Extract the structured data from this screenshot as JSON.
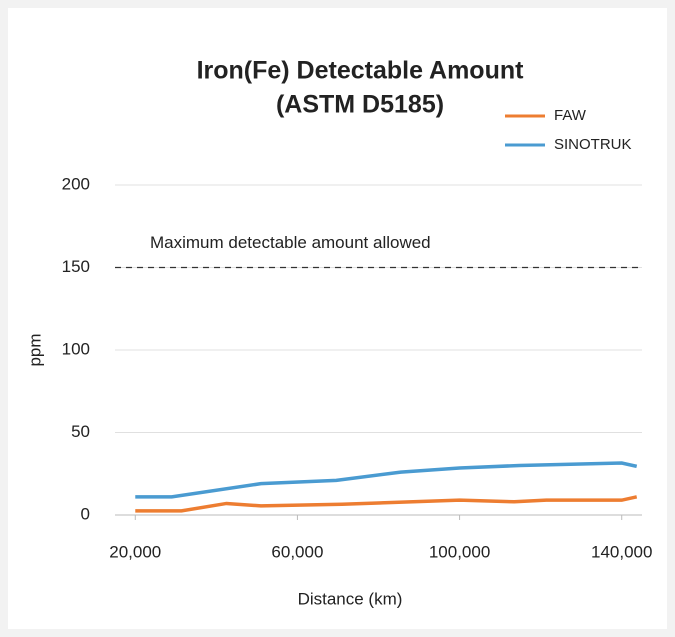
{
  "chart_data": {
    "type": "line",
    "title": [
      "Iron(Fe) Detectable Amount",
      "(ASTM D5185)"
    ],
    "x_label": "Distance (km)",
    "y_label": "ppm",
    "series": [
      {
        "name": "FAW",
        "color": "#ed7d31",
        "x": [
          20000,
          31400,
          42500,
          51000,
          71000,
          100000,
          113500,
          121400,
          140000,
          143700
        ],
        "values": [
          2.5,
          2.5,
          7,
          5.5,
          6.5,
          9,
          8,
          9,
          9,
          11
        ]
      },
      {
        "name": "SINOTRUK",
        "color": "#4a9bd1",
        "x": [
          20000,
          29000,
          51000,
          69600,
          85500,
          100000,
          114800,
          140000,
          143700
        ],
        "values": [
          11,
          11,
          19,
          21,
          26,
          28.5,
          30,
          31.5,
          29.5
        ]
      }
    ],
    "xlim": [
      15000,
      145000
    ],
    "xticks": [
      {
        "value": 20000,
        "label": "20,000"
      },
      {
        "value": 60000,
        "label": "60,000"
      },
      {
        "value": 100000,
        "label": "100,000"
      },
      {
        "value": 140000,
        "label": "140,000"
      }
    ],
    "ylim": [
      0,
      200
    ],
    "yticks": [
      0,
      50,
      100,
      150,
      200
    ],
    "grid": true,
    "reference_lines": [
      {
        "value": 150,
        "label": "Maximum detectable amount allowed"
      }
    ],
    "legend": "top-right"
  }
}
